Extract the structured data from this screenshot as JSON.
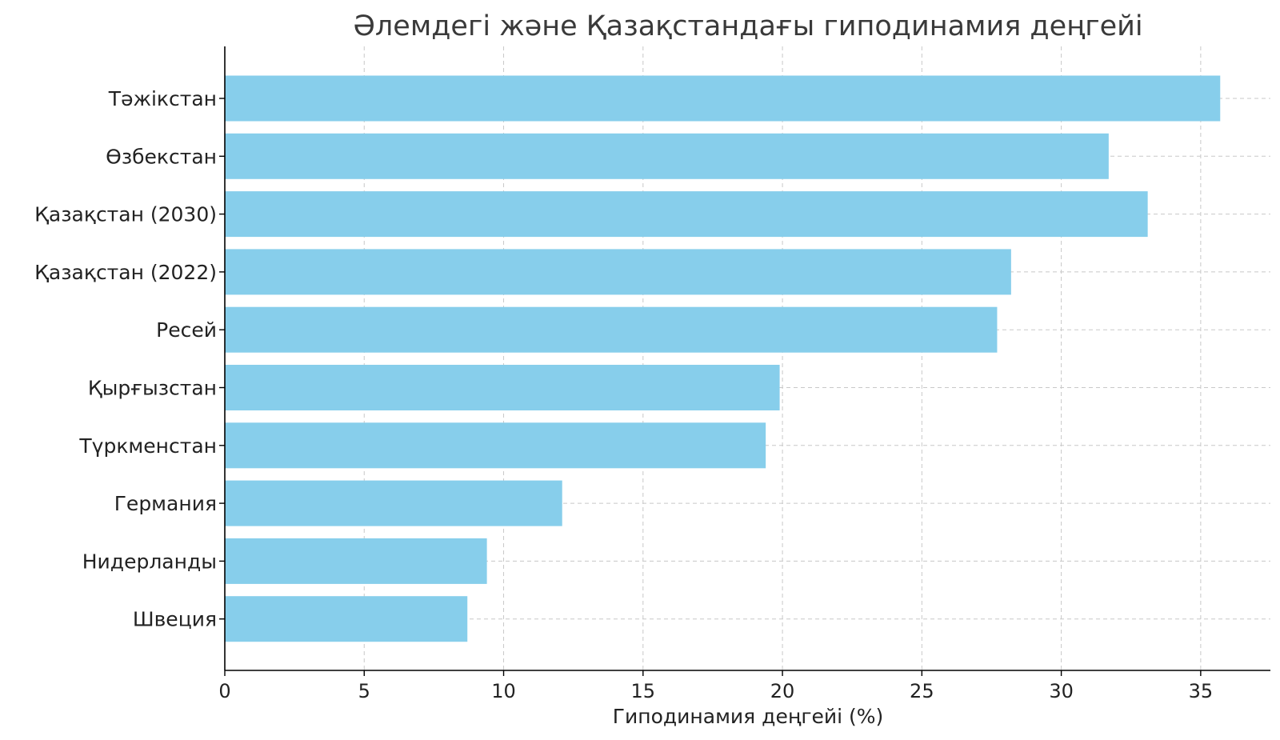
{
  "chart_data": {
    "type": "bar",
    "orientation": "horizontal",
    "title": "Әлемдегі және Қазақстандағы гиподинамия деңгейі",
    "xlabel": "Гиподинамия деңгейі (%)",
    "ylabel": "",
    "xlim": [
      0,
      37.5
    ],
    "xticks": [
      0,
      5,
      10,
      15,
      20,
      25,
      30,
      35
    ],
    "grid": true,
    "categories": [
      "Тәжікстан",
      "Өзбекстан",
      "Қазақстан (2030)",
      "Қазақстан (2022)",
      "Ресей",
      "Қырғызстан",
      "Түркменстан",
      "Германия",
      "Нидерланды",
      "Швеция"
    ],
    "values": [
      35.7,
      31.7,
      33.1,
      28.2,
      27.7,
      19.9,
      19.4,
      12.1,
      9.4,
      8.7
    ],
    "bar_color": "#87ceeb",
    "grid_color": "#c8c8c8",
    "axis_color": "#000000"
  }
}
